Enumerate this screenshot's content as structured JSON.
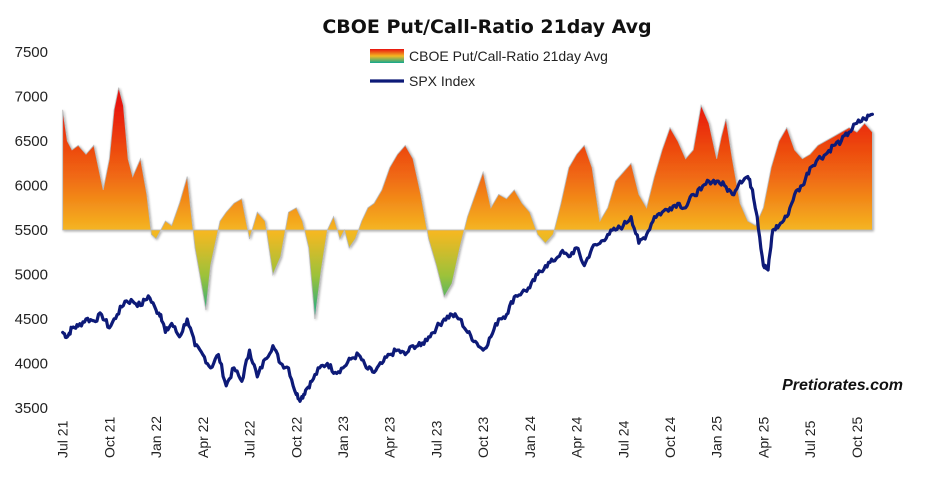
{
  "chart_data": {
    "type": "line",
    "title": "CBOE Put/Call-Ratio 21day Avg",
    "watermark": "Pretiorates.com",
    "ylim": [
      3500,
      7500
    ],
    "yticks": [
      3500,
      4000,
      4500,
      5000,
      5500,
      6000,
      6500,
      7000,
      7500
    ],
    "baseline": 5500,
    "xticks": [
      {
        "label": "Jul 21",
        "t": 0
      },
      {
        "label": "Oct 21",
        "t": 3
      },
      {
        "label": "Jan 22",
        "t": 6
      },
      {
        "label": "Apr 22",
        "t": 9
      },
      {
        "label": "Jul 22",
        "t": 12
      },
      {
        "label": "Oct 22",
        "t": 15
      },
      {
        "label": "Jan 23",
        "t": 18
      },
      {
        "label": "Apr 23",
        "t": 21
      },
      {
        "label": "Jul 23",
        "t": 24
      },
      {
        "label": "Oct 23",
        "t": 27
      },
      {
        "label": "Jan 24",
        "t": 30
      },
      {
        "label": "Apr 24",
        "t": 33
      },
      {
        "label": "Jul 24",
        "t": 36
      },
      {
        "label": "Oct 24",
        "t": 39
      },
      {
        "label": "Jan 25",
        "t": 42
      },
      {
        "label": "Apr 25",
        "t": 45
      },
      {
        "label": "Jul 25",
        "t": 48
      },
      {
        "label": "Oct 25",
        "t": 51
      }
    ],
    "xlim": [
      -0.3,
      53
    ],
    "colors": {
      "spx": "#0d1a78",
      "area_high": "#e8120f",
      "area_mid": "#f29a14",
      "area_base": "#f5b822",
      "area_low": "#10a890"
    },
    "series": [
      {
        "name": "CBOE Put/Call-Ratio 21day Avg",
        "kind": "area",
        "x": [
          0,
          0.3,
          0.6,
          1.0,
          1.5,
          2.0,
          2.3,
          2.6,
          3.0,
          3.3,
          3.6,
          3.9,
          4.2,
          4.5,
          5.0,
          5.4,
          5.7,
          6.0,
          6.3,
          6.6,
          7.0,
          7.5,
          8.0,
          8.5,
          8.9,
          9.2,
          9.5,
          9.8,
          10.1,
          10.5,
          11.0,
          11.5,
          12.0,
          12.5,
          13.0,
          13.5,
          14.0,
          14.5,
          15.0,
          15.4,
          15.8,
          16.2,
          16.6,
          17.0,
          17.4,
          17.8,
          18.1,
          18.4,
          18.8,
          19.2,
          19.6,
          20.0,
          20.5,
          21.0,
          21.5,
          22.0,
          22.5,
          23.0,
          23.5,
          24.0,
          24.5,
          25.0,
          25.5,
          26.0,
          26.5,
          27.0,
          27.5,
          28.0,
          28.5,
          29.0,
          29.5,
          30.0,
          30.5,
          31.0,
          31.5,
          32.0,
          32.5,
          33.0,
          33.5,
          34.0,
          34.5,
          35.0,
          35.5,
          36.0,
          36.5,
          37.0,
          37.5,
          38.0,
          38.5,
          39.0,
          39.5,
          40.0,
          40.5,
          41.0,
          41.5,
          42.0,
          42.3,
          42.6,
          43.0,
          43.5,
          44.0,
          44.5,
          45.0,
          45.5,
          46.0,
          46.5,
          47.0,
          47.5,
          48.0,
          48.5,
          49.0,
          49.5,
          50.0,
          50.5,
          51.0,
          51.5,
          52.0
        ],
        "values": [
          6850,
          6500,
          6400,
          6450,
          6350,
          6450,
          6200,
          5950,
          6300,
          6850,
          7100,
          6900,
          6300,
          6100,
          6300,
          5900,
          5450,
          5400,
          5500,
          5600,
          5550,
          5800,
          6100,
          5300,
          4900,
          4600,
          5100,
          5350,
          5600,
          5700,
          5800,
          5850,
          5400,
          5700,
          5600,
          5000,
          5200,
          5700,
          5750,
          5600,
          5300,
          4500,
          5050,
          5500,
          5650,
          5400,
          5500,
          5300,
          5400,
          5600,
          5750,
          5800,
          5950,
          6200,
          6350,
          6450,
          6300,
          5900,
          5400,
          5100,
          4750,
          4900,
          5300,
          5650,
          5900,
          6150,
          5750,
          5900,
          5850,
          5950,
          5800,
          5700,
          5450,
          5350,
          5450,
          5800,
          6200,
          6350,
          6450,
          6200,
          5600,
          5750,
          6050,
          6150,
          6250,
          5900,
          5750,
          6100,
          6400,
          6650,
          6500,
          6300,
          6400,
          6900,
          6700,
          6300,
          6550,
          6750,
          6300,
          5800,
          5600,
          5550,
          5750,
          6200,
          6500,
          6650,
          6400,
          6300,
          6350,
          6450,
          6500,
          6550,
          6600,
          6650,
          6600,
          6700,
          6600
        ]
      },
      {
        "name": "SPX Index",
        "kind": "line",
        "x": [
          0,
          0.3,
          0.6,
          1.0,
          1.5,
          2.0,
          2.5,
          3.0,
          3.5,
          4.0,
          4.5,
          5.0,
          5.5,
          6.0,
          6.3,
          6.6,
          7.0,
          7.5,
          8.0,
          8.5,
          9.0,
          9.5,
          10.0,
          10.5,
          11.0,
          11.5,
          12.0,
          12.5,
          13.0,
          13.5,
          14.0,
          14.5,
          15.0,
          15.3,
          15.6,
          16.0,
          16.5,
          17.0,
          17.5,
          18.0,
          18.5,
          19.0,
          19.5,
          20.0,
          20.5,
          21.0,
          21.5,
          22.0,
          22.5,
          23.0,
          23.5,
          24.0,
          24.5,
          25.0,
          25.5,
          26.0,
          26.5,
          27.0,
          27.5,
          28.0,
          28.5,
          29.0,
          29.5,
          30.0,
          30.5,
          31.0,
          31.5,
          32.0,
          32.5,
          33.0,
          33.5,
          34.0,
          34.5,
          35.0,
          35.5,
          36.0,
          36.5,
          37.0,
          37.5,
          38.0,
          38.5,
          39.0,
          39.5,
          40.0,
          40.5,
          41.0,
          41.5,
          42.0,
          42.5,
          43.0,
          43.5,
          44.0,
          44.3,
          44.6,
          45.0,
          45.3,
          45.6,
          46.0,
          46.5,
          47.0,
          47.5,
          48.0,
          48.5,
          49.0,
          49.5,
          50.0,
          50.5,
          51.0,
          51.5,
          52.0
        ],
        "values": [
          4350,
          4300,
          4400,
          4420,
          4500,
          4480,
          4550,
          4400,
          4550,
          4700,
          4700,
          4650,
          4760,
          4600,
          4550,
          4350,
          4450,
          4300,
          4500,
          4200,
          4100,
          3950,
          4100,
          3750,
          3950,
          3800,
          4150,
          3850,
          4050,
          4200,
          4000,
          3950,
          3650,
          3600,
          3700,
          3800,
          3950,
          4000,
          3900,
          3950,
          4050,
          4100,
          3950,
          3900,
          4000,
          4100,
          4150,
          4100,
          4200,
          4200,
          4300,
          4400,
          4500,
          4550,
          4500,
          4350,
          4250,
          4150,
          4300,
          4500,
          4550,
          4750,
          4800,
          4850,
          5000,
          5100,
          5150,
          5250,
          5200,
          5300,
          5100,
          5300,
          5350,
          5450,
          5500,
          5550,
          5650,
          5350,
          5450,
          5650,
          5700,
          5750,
          5800,
          5750,
          5900,
          5950,
          6050,
          6050,
          6000,
          5900,
          6050,
          6100,
          5950,
          5650,
          5100,
          5050,
          5500,
          5550,
          5650,
          5900,
          6000,
          6200,
          6300,
          6350,
          6450,
          6500,
          6600,
          6700,
          6750,
          6800
        ]
      }
    ],
    "legend": [
      {
        "label": "CBOE Put/Call-Ratio 21day Avg",
        "kind": "area"
      },
      {
        "label": "SPX Index",
        "kind": "line"
      }
    ]
  }
}
